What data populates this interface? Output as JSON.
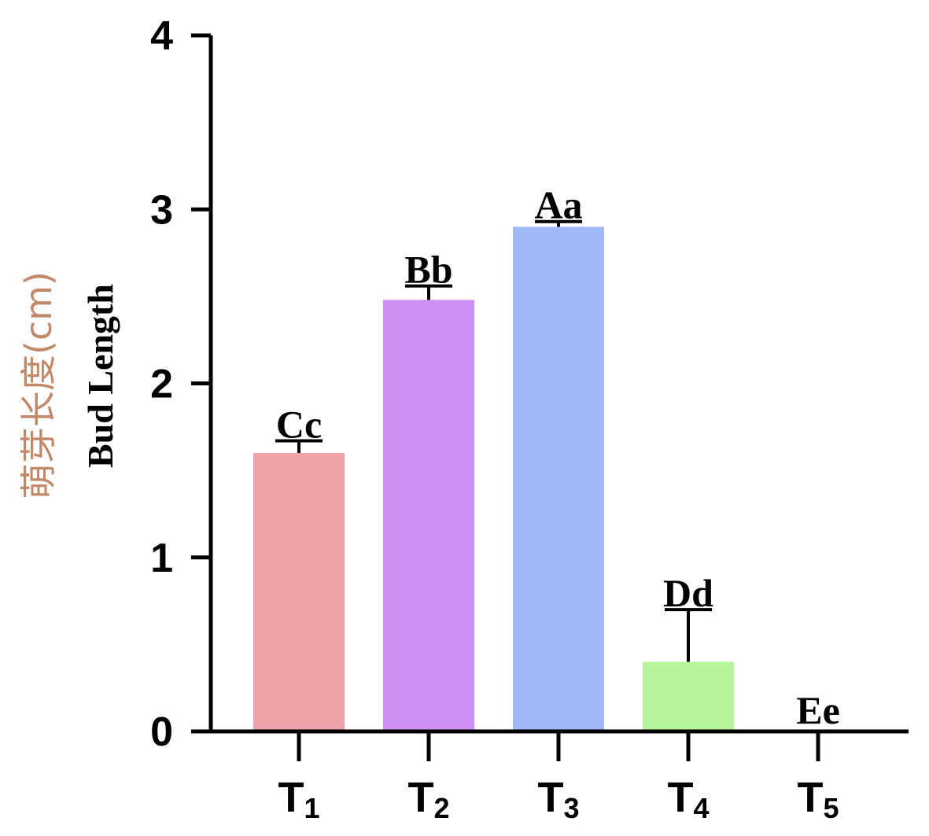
{
  "chart_data": {
    "type": "bar",
    "ylabel_cn": "萌芽长度(cm)",
    "ylabel_en": "Bud Length",
    "ylim": [
      0,
      4
    ],
    "yticks": [
      0,
      1,
      2,
      3,
      4
    ],
    "categories": [
      {
        "main": "T",
        "sub": "1"
      },
      {
        "main": "T",
        "sub": "2"
      },
      {
        "main": "T",
        "sub": "3"
      },
      {
        "main": "T",
        "sub": "4"
      },
      {
        "main": "T",
        "sub": "5"
      }
    ],
    "values": [
      1.6,
      2.48,
      2.9,
      0.4,
      0.0
    ],
    "errors": [
      0.07,
      0.08,
      0.03,
      0.3,
      0.0
    ],
    "significance": [
      "Cc",
      "Bb",
      "Aa",
      "Dd",
      "Ee"
    ],
    "colors": [
      "#efa3a8",
      "#cf8ff5",
      "#9fb8f8",
      "#b6f59e",
      "#cccccc"
    ],
    "grid": false
  }
}
